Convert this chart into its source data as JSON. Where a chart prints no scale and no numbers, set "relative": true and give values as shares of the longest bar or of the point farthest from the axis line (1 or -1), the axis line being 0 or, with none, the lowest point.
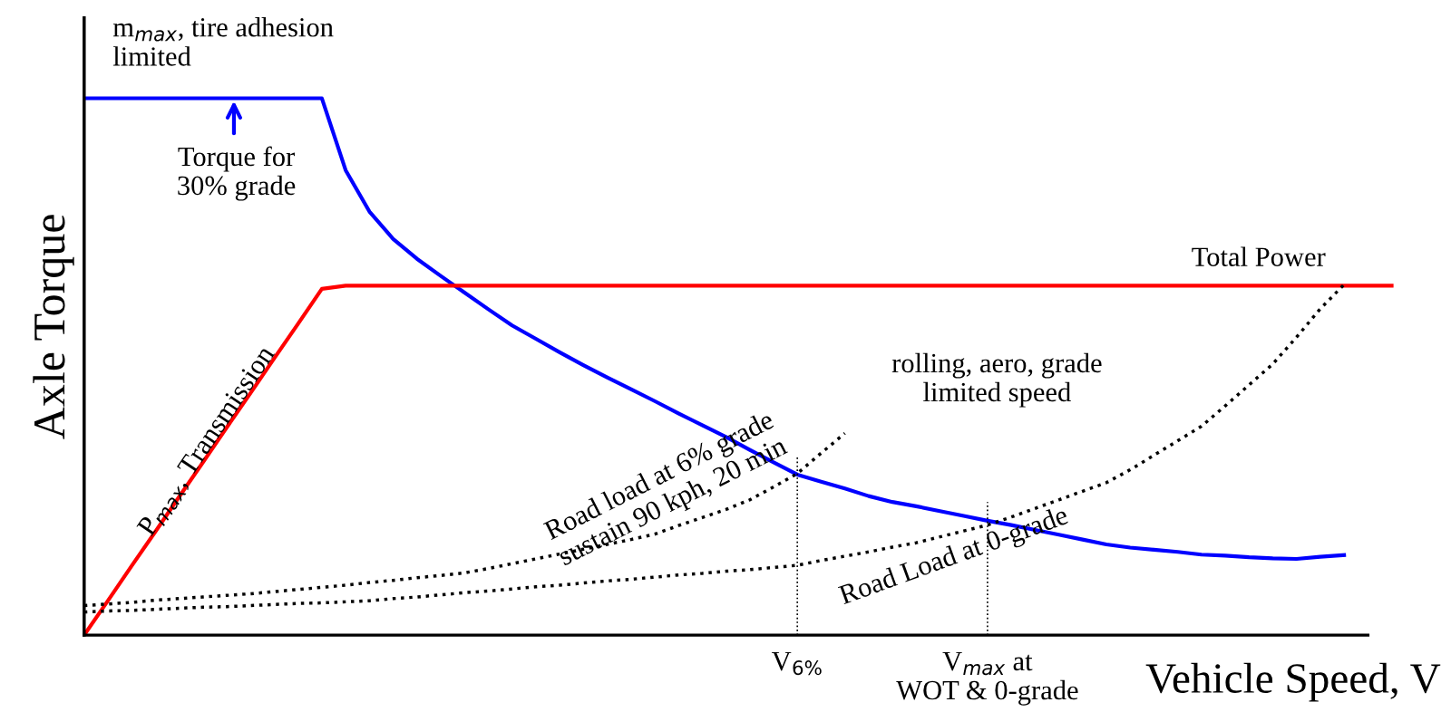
{
  "chart_data": {
    "type": "line",
    "relative": true,
    "xlabel": "Vehicle Speed, V",
    "ylabel": "Axle Torque",
    "marker": "none",
    "categories": [
      null,
      null,
      null,
      null,
      null,
      null,
      null,
      null,
      null,
      null,
      null,
      null,
      null,
      null,
      null,
      null,
      null,
      null,
      null,
      null,
      null,
      null,
      null,
      null,
      null,
      null,
      null,
      null,
      null,
      null,
      null,
      null,
      null,
      null,
      null,
      null,
      null,
      null,
      null,
      null,
      null,
      null,
      null,
      null,
      null,
      null,
      null,
      null,
      null,
      null,
      null,
      null,
      null,
      null,
      null,
      null
    ],
    "series": [
      {
        "color": "#0000ff",
        "line_style": "solid",
        "values": [
          1.0,
          1.0,
          1.0,
          1.0,
          1.0,
          1.0,
          1.0,
          1.0,
          1.0,
          1.0,
          1.0,
          0.866,
          0.789,
          0.738,
          0.701,
          0.669,
          0.638,
          0.607,
          0.577,
          0.552,
          0.527,
          0.503,
          0.48,
          0.458,
          0.436,
          0.413,
          0.391,
          0.369,
          0.345,
          0.322,
          0.299,
          0.286,
          0.273,
          0.259,
          0.248,
          0.24,
          0.231,
          0.222,
          0.213,
          0.205,
          0.196,
          0.187,
          0.178,
          0.169,
          0.163,
          0.159,
          0.155,
          0.15,
          0.148,
          0.145,
          0.143,
          0.142,
          0.146,
          0.149,
          null,
          null
        ]
      },
      {
        "color": "#ff0000",
        "line_style": "solid",
        "values": [
          0,
          0.064,
          0.129,
          0.193,
          0.258,
          0.322,
          0.387,
          0.451,
          0.516,
          0.58,
          0.645,
          0.651,
          0.651,
          0.651,
          0.651,
          0.651,
          0.651,
          0.651,
          0.651,
          0.651,
          0.651,
          0.651,
          0.651,
          0.651,
          0.651,
          0.651,
          0.651,
          0.651,
          0.651,
          0.651,
          0.651,
          0.651,
          0.651,
          0.651,
          0.651,
          0.651,
          0.651,
          0.651,
          0.651,
          0.651,
          0.651,
          0.651,
          0.651,
          0.651,
          0.651,
          0.651,
          0.651,
          0.651,
          0.651,
          0.651,
          0.651,
          0.651,
          0.651,
          0.651,
          0.651,
          0.651
        ]
      },
      {
        "color": "#000000",
        "line_style": "dotted",
        "values": [
          0.055,
          0.058,
          0.061,
          0.065,
          0.068,
          0.071,
          0.074,
          0.077,
          0.081,
          0.085,
          0.089,
          0.093,
          0.098,
          0.102,
          0.107,
          0.111,
          0.116,
          0.124,
          0.133,
          0.142,
          0.151,
          0.16,
          0.169,
          0.178,
          0.188,
          0.204,
          0.219,
          0.234,
          0.252,
          0.276,
          0.301,
          0.339,
          0.376,
          null,
          null,
          null,
          null,
          null,
          null,
          null,
          null,
          null,
          null,
          null,
          null,
          null,
          null,
          null,
          null,
          null,
          null,
          null,
          null,
          null,
          null,
          null
        ]
      },
      {
        "color": "#000000",
        "line_style": "dotted",
        "values": [
          0.043,
          0.045,
          0.046,
          0.048,
          0.05,
          0.052,
          0.053,
          0.055,
          0.057,
          0.059,
          0.06,
          0.062,
          0.064,
          0.068,
          0.071,
          0.075,
          0.079,
          0.082,
          0.086,
          0.09,
          0.093,
          0.097,
          0.101,
          0.104,
          0.108,
          0.112,
          0.115,
          0.119,
          0.122,
          0.126,
          0.13,
          0.139,
          0.147,
          0.155,
          0.164,
          0.172,
          0.183,
          0.194,
          0.205,
          0.22,
          0.236,
          0.252,
          0.268,
          0.284,
          0.308,
          0.335,
          0.362,
          0.389,
          0.427,
          0.466,
          0.505,
          0.555,
          0.608,
          0.653,
          null,
          null
        ]
      }
    ],
    "annotations": [
      "m$_{max}$, tire adhesion\nlimited",
      "Torque for\n30% grade",
      "Total Power",
      "P$_{max}$, Transmission",
      "rolling, aero, grade\nlimited speed",
      "Road load at 6% grade\nsustain 90 kph, 20 min",
      "Road Load at 0-grade",
      "V$_{6%}$",
      "V$_{max}$ at\nWOT & 0-grade"
    ]
  }
}
